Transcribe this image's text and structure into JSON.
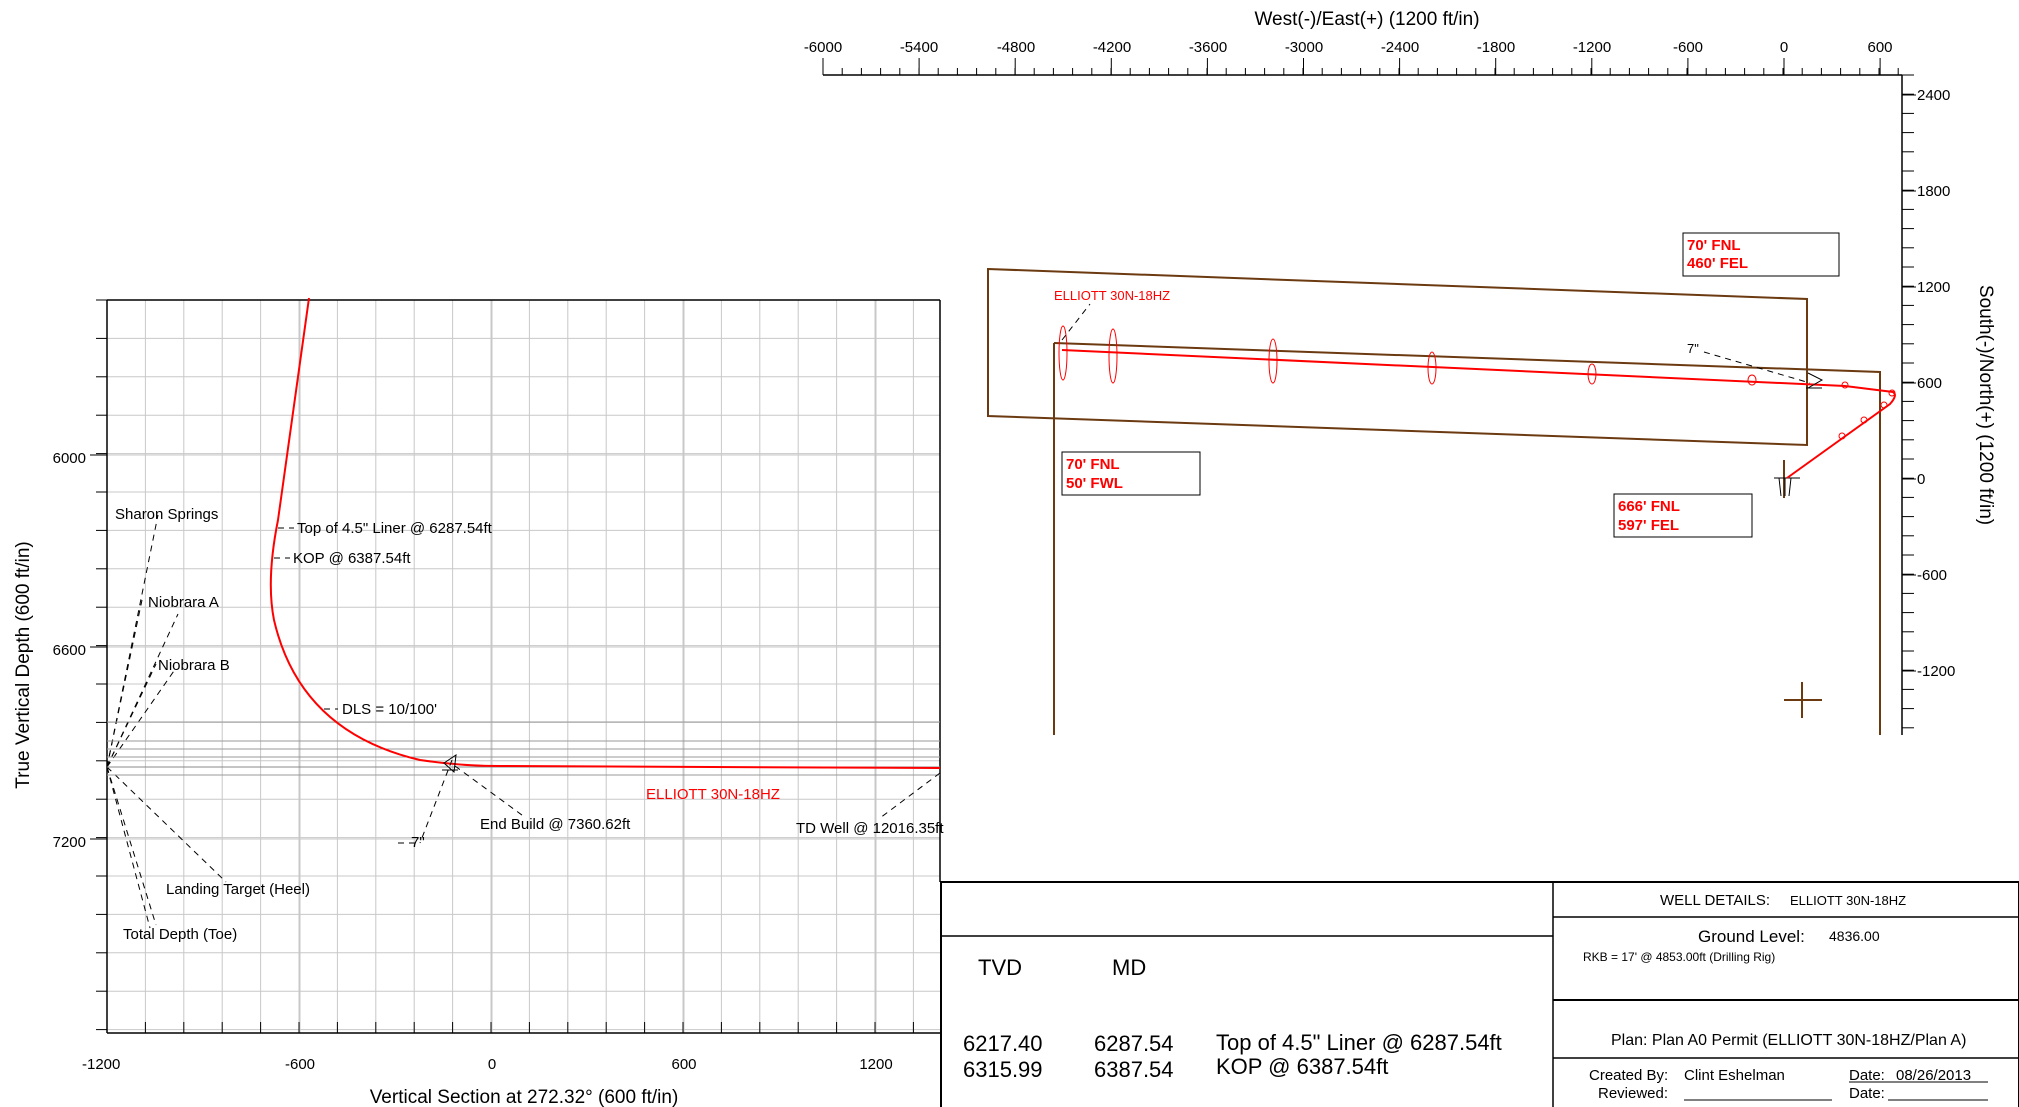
{
  "section_view": {
    "xlabel": "Vertical Section at 272.32° (600 ft/in)",
    "ylabel": "True Vertical Depth (600 ft/in)",
    "x_ticks": [
      "-1200",
      "-600",
      "0",
      "600",
      "1200"
    ],
    "y_ticks": [
      "6000",
      "6600",
      "7200"
    ],
    "well_name": "ELLIOTT 30N-18HZ",
    "formations": [
      "Sharon Springs",
      "Niobrara A",
      "Niobrara B",
      "Landing Target (Heel)",
      "Total Depth (Toe)"
    ],
    "annotations": {
      "top_liner": "Top of 4.5\" Liner @ 6287.54ft",
      "kop": "KOP @ 6387.54ft",
      "dls": "DLS = 10/100'",
      "casing": "7\"",
      "end_build": "End Build @ 7360.62ft",
      "td_well": "TD Well @ 12016.35ft"
    }
  },
  "plan_view": {
    "xlabel": "West(-)/East(+) (1200 ft/in)",
    "ylabel": "South(-)/North(+) (1200 ft/in)",
    "x_ticks": [
      "-6000",
      "-5400",
      "-4800",
      "-4200",
      "-3600",
      "-3000",
      "-2400",
      "-1800",
      "-1200",
      "-600",
      "0",
      "600"
    ],
    "y_ticks": [
      "2400",
      "1800",
      "1200",
      "600",
      "0",
      "-600",
      "-1200"
    ],
    "well_name": "ELLIOTT 30N-18HZ",
    "casing": "7\"",
    "boxes": [
      {
        "line1": "70' FNL",
        "line2": "460' FEL"
      },
      {
        "line1": "70' FNL",
        "line2": "50' FWL"
      },
      {
        "line1": "666' FNL",
        "line2": "597' FEL"
      }
    ]
  },
  "title_block": {
    "col_tvd": "TVD",
    "col_md": "MD",
    "rows": [
      {
        "tvd": "6217.40",
        "md": "6287.54",
        "desc": "Top of 4.5\" Liner @ 6287.54ft"
      },
      {
        "tvd": "6315.99",
        "md": "6387.54",
        "desc": "KOP @ 6387.54ft"
      }
    ],
    "well_details_label": "WELL DETAILS:",
    "well_details_name": "ELLIOTT 30N-18HZ",
    "ground_level_label": "Ground Level:",
    "ground_level_value": "4836.00",
    "rkb": "RKB = 17' @ 4853.00ft (Drilling Rig)",
    "plan": "Plan: Plan A0 Permit (ELLIOTT 30N-18HZ/Plan A)",
    "created_by_label": "Created By:",
    "created_by_value": "Clint Eshelman",
    "reviewed_label": "Reviewed:",
    "date_label": "Date:",
    "date_value": "08/26/2013"
  },
  "colors": {
    "well": "#ff0000",
    "lease": "#6b3a10",
    "grid": "#c8c8c8"
  }
}
